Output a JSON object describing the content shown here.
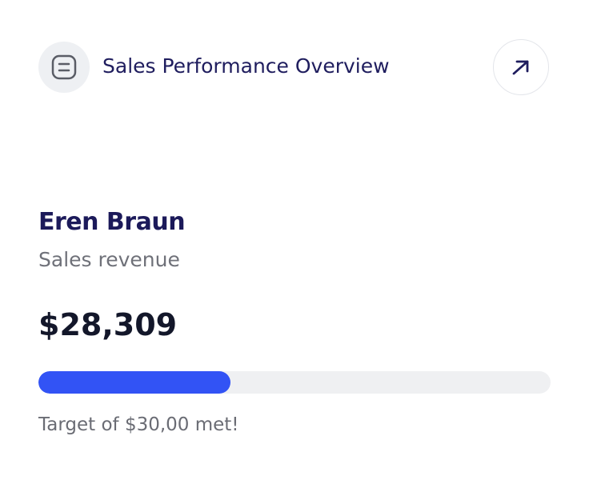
{
  "header": {
    "title": "Sales Performance Overview"
  },
  "person": {
    "name": "Eren Braun",
    "metric": "Sales revenue",
    "value": "$28,309"
  },
  "progress": {
    "percent": 37.5,
    "caption": "Target of $30,00 met!"
  }
}
